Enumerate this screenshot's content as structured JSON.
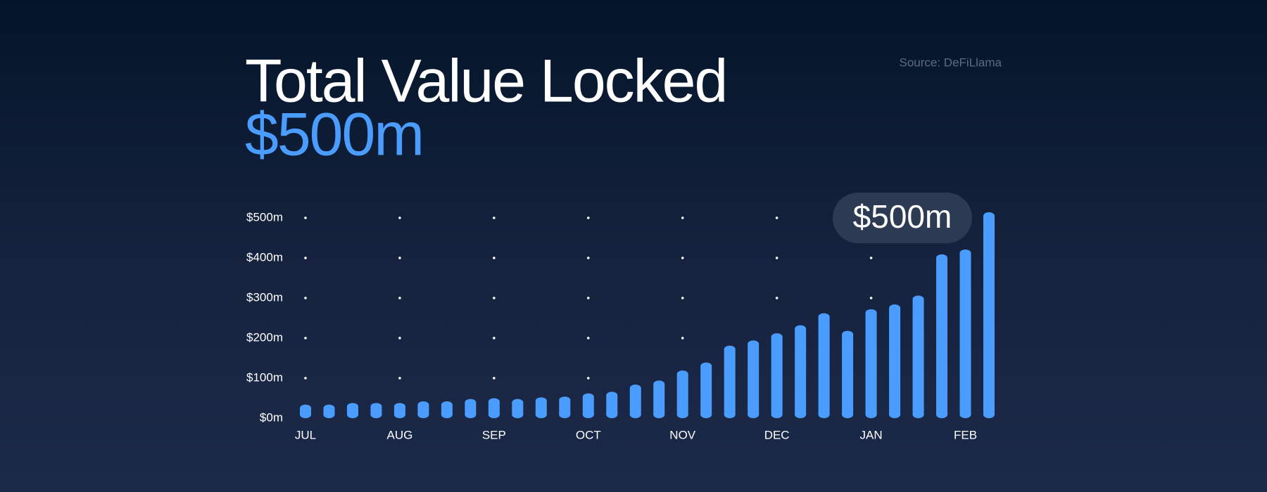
{
  "chart_data": {
    "type": "bar",
    "title": "Total Value Locked",
    "subtitle": "$500m",
    "source": "Source: DeFiLlama",
    "categories": [
      "JUL",
      null,
      null,
      null,
      "AUG",
      null,
      null,
      null,
      "SEP",
      null,
      null,
      null,
      "OCT",
      null,
      null,
      null,
      "NOV",
      null,
      null,
      null,
      "DEC",
      null,
      null,
      null,
      "JAN",
      null,
      null,
      null,
      "FEB",
      null
    ],
    "values": [
      20,
      20,
      24,
      24,
      24,
      28,
      28,
      34,
      36,
      34,
      38,
      40,
      48,
      52,
      70,
      80,
      105,
      125,
      167,
      180,
      198,
      218,
      248,
      204,
      258,
      270,
      292,
      395,
      407,
      500
    ],
    "value_labels": [
      null,
      null,
      null,
      null,
      null,
      null,
      null,
      null,
      null,
      null,
      null,
      null,
      null,
      null,
      null,
      null,
      null,
      null,
      null,
      null,
      null,
      null,
      null,
      null,
      null,
      null,
      null,
      null,
      null,
      "$500m"
    ],
    "color": "#4a9dff",
    "ylim": [
      0,
      500
    ],
    "yticks": [
      {
        "value": 0,
        "label": "$0m"
      },
      {
        "value": 100,
        "label": "$100m"
      },
      {
        "value": 200,
        "label": "$200m"
      },
      {
        "value": 300,
        "label": "$300m"
      },
      {
        "value": 400,
        "label": "$400m"
      },
      {
        "value": 500,
        "label": "$500m"
      }
    ],
    "grid": true
  }
}
